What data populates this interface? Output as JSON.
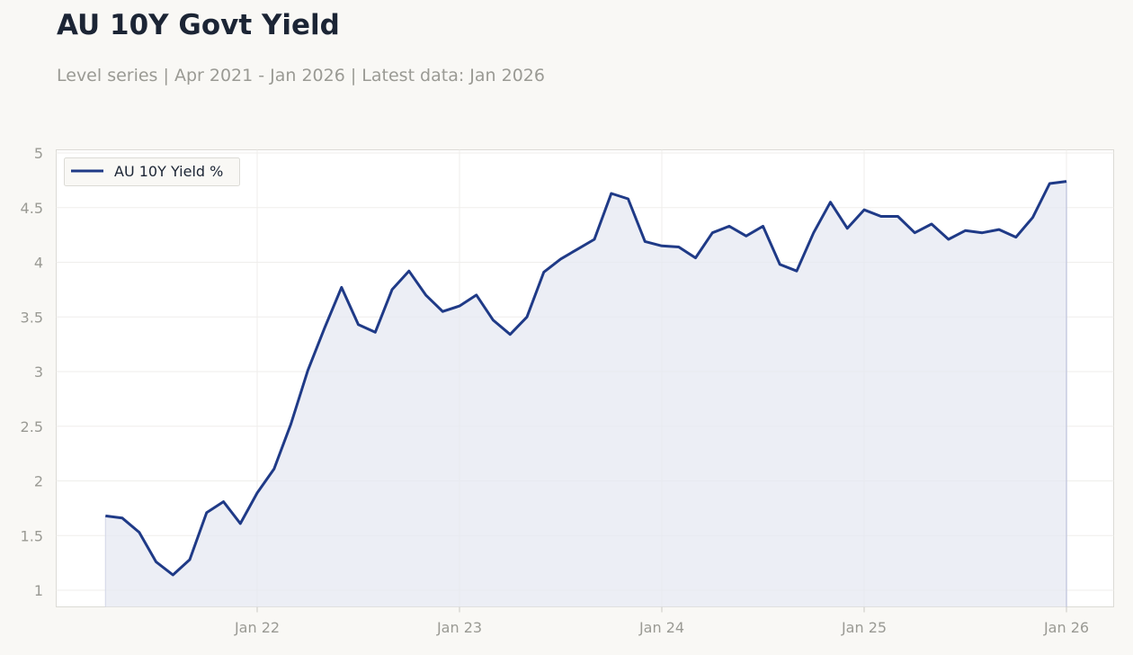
{
  "header": {
    "title": "AU 10Y Govt Yield",
    "subtitle": "Level series | Apr 2021 - Jan 2026 | Latest data: Jan 2026"
  },
  "chart_data": {
    "type": "area",
    "title": "AU 10Y Govt Yield",
    "subtitle": "Level series | Apr 2021 - Jan 2026 | Latest data: Jan 2026",
    "xlabel": "",
    "ylabel": "",
    "ylim": [
      0.86,
      5.0
    ],
    "y_ticks": [
      1,
      1.5,
      2,
      2.5,
      3,
      3.5,
      4,
      4.5,
      5
    ],
    "x_ticks": [
      {
        "label": "Jan 22",
        "date": "2022-01"
      },
      {
        "label": "Jan 23",
        "date": "2023-01"
      },
      {
        "label": "Jan 24",
        "date": "2024-01"
      },
      {
        "label": "Jan 25",
        "date": "2025-01"
      },
      {
        "label": "Jan 26",
        "date": "2026-01"
      }
    ],
    "xlim": [
      "2021-01",
      "2026-02"
    ],
    "grid": true,
    "legend": "top-left",
    "colors": {
      "line": "#1f3a87",
      "fill": "#e6e8f1"
    },
    "series": [
      {
        "name": "AU 10Y Yield %",
        "x": [
          "2021-04",
          "2021-05",
          "2021-06",
          "2021-07",
          "2021-08",
          "2021-09",
          "2021-10",
          "2021-11",
          "2021-12",
          "2022-01",
          "2022-02",
          "2022-03",
          "2022-04",
          "2022-05",
          "2022-06",
          "2022-07",
          "2022-08",
          "2022-09",
          "2022-10",
          "2022-11",
          "2022-12",
          "2023-01",
          "2023-02",
          "2023-03",
          "2023-04",
          "2023-05",
          "2023-06",
          "2023-07",
          "2023-08",
          "2023-09",
          "2023-10",
          "2023-11",
          "2023-12",
          "2024-01",
          "2024-02",
          "2024-03",
          "2024-04",
          "2024-05",
          "2024-06",
          "2024-07",
          "2024-08",
          "2024-09",
          "2024-10",
          "2024-11",
          "2024-12",
          "2025-01",
          "2025-02",
          "2025-03",
          "2025-04",
          "2025-05",
          "2025-06",
          "2025-07",
          "2025-08",
          "2025-09",
          "2025-10",
          "2025-11",
          "2025-12",
          "2026-01"
        ],
        "values": [
          1.68,
          1.66,
          1.53,
          1.26,
          1.14,
          1.28,
          1.71,
          1.81,
          1.61,
          1.89,
          2.11,
          2.52,
          3.01,
          3.4,
          3.77,
          3.43,
          3.36,
          3.75,
          3.92,
          3.7,
          3.55,
          3.6,
          3.7,
          3.47,
          3.34,
          3.5,
          3.91,
          4.03,
          4.12,
          4.21,
          4.63,
          4.58,
          4.19,
          4.15,
          4.14,
          4.04,
          4.27,
          4.33,
          4.24,
          4.33,
          3.98,
          3.92,
          4.27,
          4.55,
          4.31,
          4.48,
          4.42,
          4.42,
          4.27,
          4.35,
          4.21,
          4.29,
          4.27,
          4.3,
          4.23,
          4.41,
          4.72,
          4.74
        ]
      }
    ]
  }
}
